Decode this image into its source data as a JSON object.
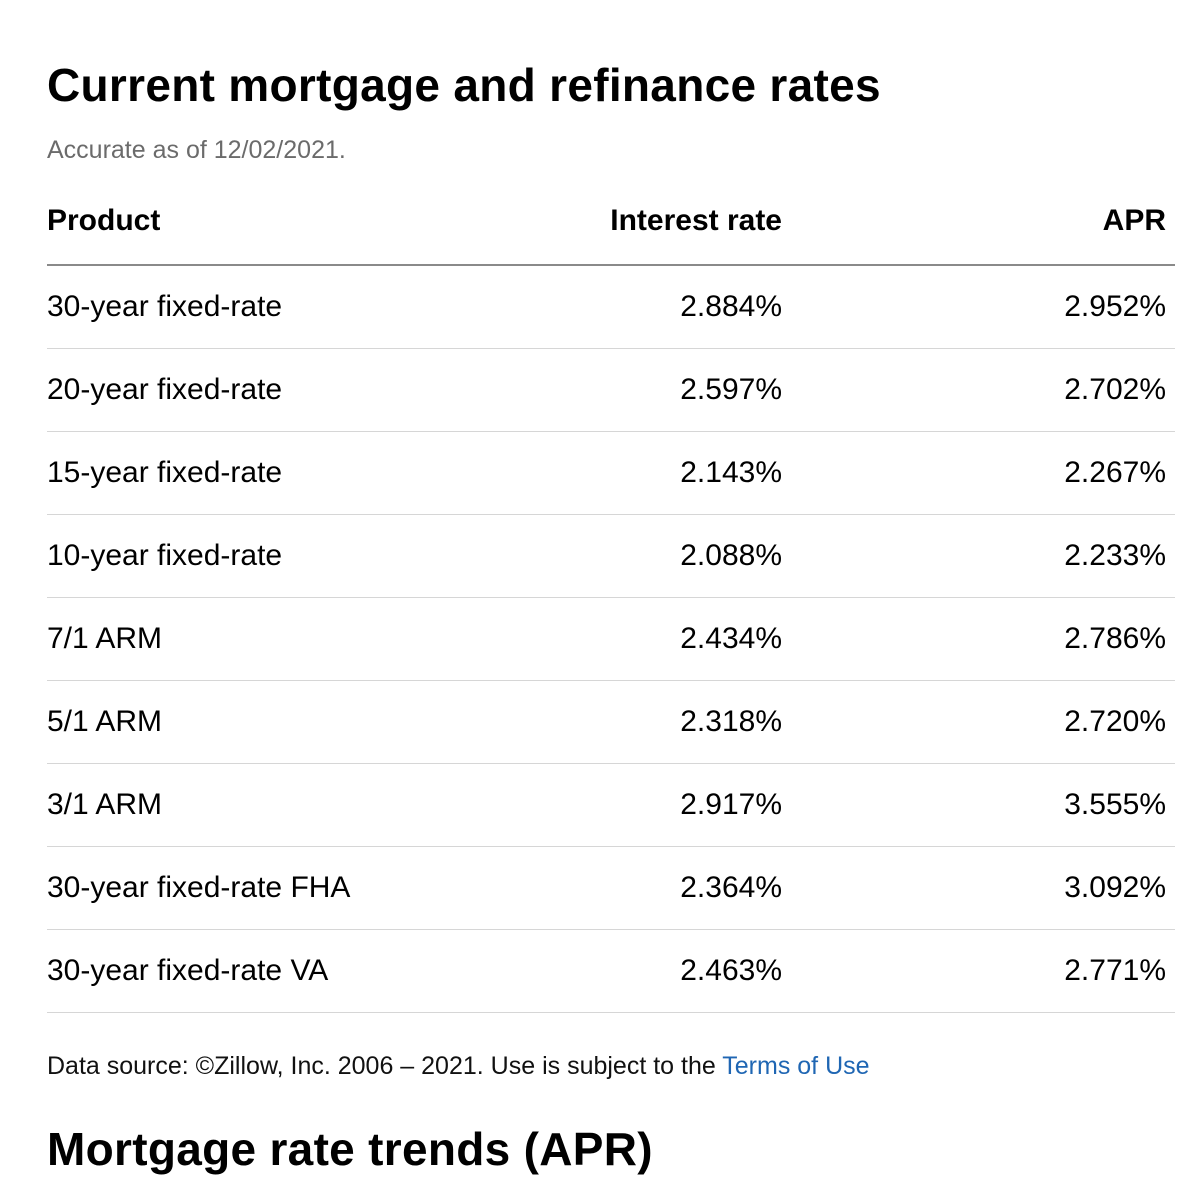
{
  "header": {
    "title": "Current mortgage and refinance rates",
    "as_of": "Accurate as of 12/02/2021."
  },
  "table": {
    "columns": [
      "Product",
      "Interest rate",
      "APR"
    ],
    "rows": [
      {
        "product": "30-year fixed-rate",
        "rate": "2.884%",
        "apr": "2.952%"
      },
      {
        "product": "20-year fixed-rate",
        "rate": "2.597%",
        "apr": "2.702%"
      },
      {
        "product": "15-year fixed-rate",
        "rate": "2.143%",
        "apr": "2.267%"
      },
      {
        "product": "10-year fixed-rate",
        "rate": "2.088%",
        "apr": "2.233%"
      },
      {
        "product": "7/1 ARM",
        "rate": "2.434%",
        "apr": "2.786%"
      },
      {
        "product": "5/1 ARM",
        "rate": "2.318%",
        "apr": "2.720%"
      },
      {
        "product": "3/1 ARM",
        "rate": "2.917%",
        "apr": "3.555%"
      },
      {
        "product": "30-year fixed-rate FHA",
        "rate": "2.364%",
        "apr": "3.092%"
      },
      {
        "product": "30-year fixed-rate VA",
        "rate": "2.463%",
        "apr": "2.771%"
      }
    ]
  },
  "source": {
    "text": "Data source: ©Zillow, Inc. 2006 – 2021. Use is subject to the",
    "link_label": "Terms of Use",
    "link_color": "#1f66b3"
  },
  "section": {
    "title": "Mortgage rate trends (APR)"
  }
}
